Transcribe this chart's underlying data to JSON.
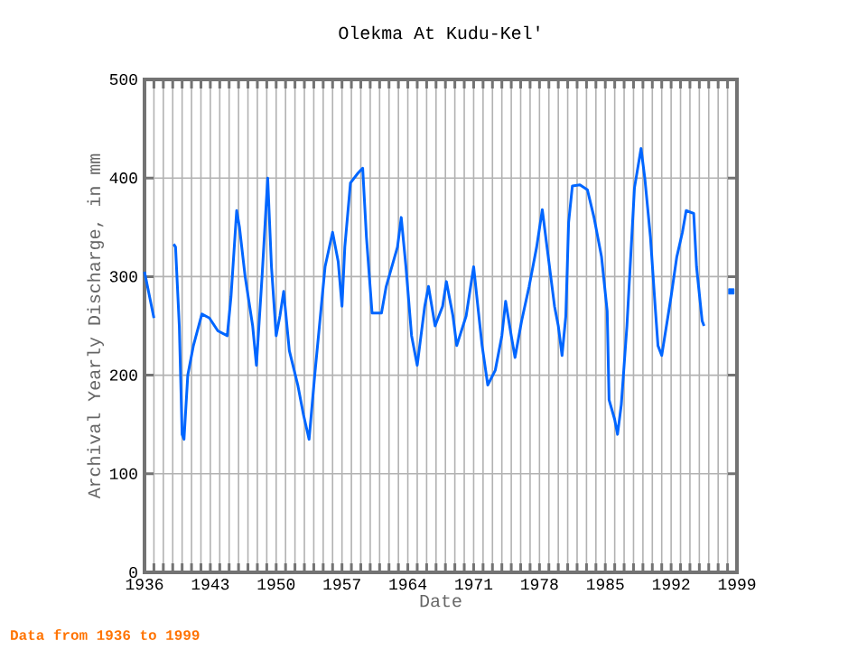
{
  "chart_data": {
    "type": "line",
    "title": "Olekma At Kudu-Kel'",
    "xlabel": "Date",
    "ylabel": "Archival Yearly Discharge, in mm",
    "annotations": [
      "Data from 1936 to 1999"
    ],
    "series": [
      {
        "color": "#0066ff",
        "x": [
          1936,
          1937,
          1937.5,
          1939.1,
          1939.3,
          1939.7,
          1940.0,
          1940.2,
          1940.6,
          1941.2,
          1942.1,
          1942.9,
          1943.8,
          1944.8,
          1945.2,
          1945.8,
          1946.1,
          1946.7,
          1947.5,
          1947.9,
          1948.5,
          1949.1,
          1949.5,
          1950.0,
          1950.4,
          1950.8,
          1951.4,
          1952.3,
          1952.9,
          1953.5,
          1954.1,
          1955.2,
          1956.0,
          1956.6,
          1957.0,
          1957.3,
          1957.9,
          1958.7,
          1959.2,
          1959.6,
          1960.2,
          1961.2,
          1961.7,
          1962.9,
          1963.3,
          1963.8,
          1964.4,
          1965.0,
          1965.8,
          1966.2,
          1966.9,
          1967.7,
          1968.1,
          1968.8,
          1969.2,
          1970.2,
          1971.0,
          1971.5,
          1971.9,
          1972.5,
          1973.3,
          1974.0,
          1974.4,
          1975.0,
          1975.4,
          1976.1,
          1976.9,
          1977.7,
          1978.3,
          1978.8,
          1979.6,
          1980.0,
          1980.4,
          1980.8,
          1981.1,
          1981.5,
          1982.3,
          1983.1,
          1983.8,
          1984.6,
          1985.2,
          1985.4,
          1986.0,
          1986.3,
          1986.7,
          1987.3,
          1987.7,
          1988.1,
          1988.8,
          1989.2,
          1989.8,
          1990.3,
          1990.6,
          1991.0,
          1991.5,
          1992.0,
          1992.6,
          1993.2,
          1993.6,
          1994.4,
          1994.7,
          1995.3,
          1995.5
        ],
        "values": [
          305,
          258,
          null,
          333,
          330,
          250,
          140,
          135,
          200,
          230,
          262,
          258,
          245,
          240,
          280,
          367,
          350,
          300,
          250,
          210,
          300,
          400,
          310,
          240,
          260,
          285,
          225,
          190,
          160,
          135,
          200,
          310,
          345,
          315,
          270,
          330,
          395,
          405,
          410,
          340,
          263,
          263,
          290,
          330,
          360,
          310,
          240,
          210,
          270,
          290,
          250,
          270,
          295,
          260,
          230,
          260,
          310,
          265,
          230,
          190,
          205,
          240,
          275,
          240,
          218,
          255,
          290,
          330,
          368,
          330,
          270,
          250,
          220,
          260,
          355,
          392,
          393,
          388,
          360,
          320,
          265,
          175,
          155,
          140,
          170,
          250,
          320,
          390,
          430,
          400,
          340,
          270,
          230,
          220,
          250,
          280,
          320,
          345,
          367,
          364,
          310,
          255,
          250
        ]
      },
      {
        "color": "#0066ff",
        "type": "scatter",
        "marker": "square",
        "x": [
          1998.4
        ],
        "values": [
          285
        ]
      }
    ],
    "xlim": [
      1936,
      1999
    ],
    "ylim": [
      0,
      500
    ],
    "xticks": [
      1936,
      {
        "value": 1937,
        "label": null
      },
      {
        "value": 1938,
        "label": null
      },
      {
        "value": 1939,
        "label": null
      },
      {
        "value": 1940,
        "label": null
      },
      {
        "value": 1941,
        "label": null
      },
      {
        "value": 1942,
        "label": null
      },
      1943,
      {
        "value": 1944,
        "label": null
      },
      {
        "value": 1945,
        "label": null
      },
      {
        "value": 1946,
        "label": null
      },
      {
        "value": 1947,
        "label": null
      },
      {
        "value": 1948,
        "label": null
      },
      {
        "value": 1949,
        "label": null
      },
      1950,
      {
        "value": 1951,
        "label": null
      },
      {
        "value": 1952,
        "label": null
      },
      {
        "value": 1953,
        "label": null
      },
      {
        "value": 1954,
        "label": null
      },
      {
        "value": 1955,
        "label": null
      },
      {
        "value": 1956,
        "label": null
      },
      1957,
      {
        "value": 1958,
        "label": null
      },
      {
        "value": 1959,
        "label": null
      },
      {
        "value": 1960,
        "label": null
      },
      {
        "value": 1961,
        "label": null
      },
      {
        "value": 1962,
        "label": null
      },
      {
        "value": 1963,
        "label": null
      },
      1964,
      {
        "value": 1965,
        "label": null
      },
      {
        "value": 1966,
        "label": null
      },
      {
        "value": 1967,
        "label": null
      },
      {
        "value": 1968,
        "label": null
      },
      {
        "value": 1969,
        "label": null
      },
      {
        "value": 1970,
        "label": null
      },
      1971,
      {
        "value": 1972,
        "label": null
      },
      {
        "value": 1973,
        "label": null
      },
      {
        "value": 1974,
        "label": null
      },
      {
        "value": 1975,
        "label": null
      },
      {
        "value": 1976,
        "label": null
      },
      {
        "value": 1977,
        "label": null
      },
      1978,
      {
        "value": 1979,
        "label": null
      },
      {
        "value": 1980,
        "label": null
      },
      {
        "value": 1981,
        "label": null
      },
      {
        "value": 1982,
        "label": null
      },
      {
        "value": 1983,
        "label": null
      },
      {
        "value": 1984,
        "label": null
      },
      1985,
      {
        "value": 1986,
        "label": null
      },
      {
        "value": 1987,
        "label": null
      },
      {
        "value": 1988,
        "label": null
      },
      {
        "value": 1989,
        "label": null
      },
      {
        "value": 1990,
        "label": null
      },
      {
        "value": 1991,
        "label": null
      },
      1992,
      {
        "value": 1993,
        "label": null
      },
      {
        "value": 1994,
        "label": null
      },
      {
        "value": 1995,
        "label": null
      },
      {
        "value": 1996,
        "label": null
      },
      {
        "value": 1997,
        "label": null
      },
      {
        "value": 1998,
        "label": null
      },
      1999
    ],
    "yticks": [
      0,
      100,
      200,
      300,
      400,
      500
    ],
    "grid": true
  }
}
